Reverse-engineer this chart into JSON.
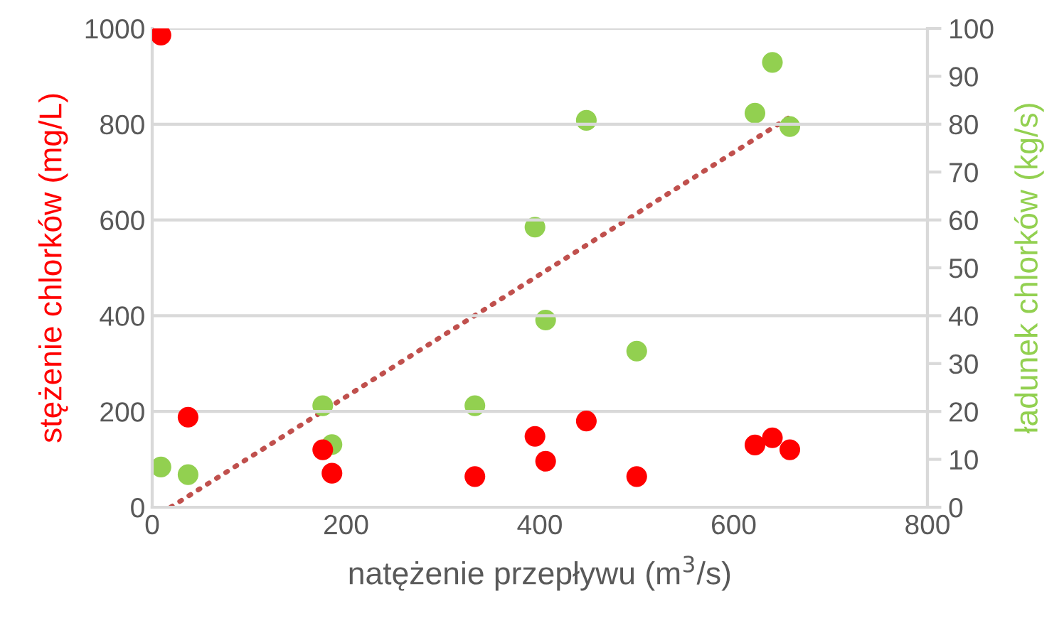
{
  "chart_data": {
    "type": "scatter",
    "xlabel": "natężenie przepływu (m$^{3}$/s)",
    "ylabel": "stężenie chlorków (mg/L)",
    "y2label": "ładunek chlorków (kg/s)",
    "xlim": [
      0,
      800
    ],
    "xticks": [
      0,
      200,
      400,
      600,
      800
    ],
    "ylim": [
      0,
      1000
    ],
    "yticks": [
      0,
      200,
      400,
      600,
      800,
      1000
    ],
    "y2lim": [
      0,
      100
    ],
    "y2ticks": [
      0,
      10,
      20,
      30,
      40,
      50,
      60,
      70,
      80,
      90,
      100
    ],
    "grid": "y",
    "legend": false,
    "marker": "circle",
    "series": [
      {
        "color": "#ff0000",
        "x": [
          9,
          37,
          176,
          185.5,
          333,
          395,
          406,
          448,
          500,
          622,
          640,
          658
        ],
        "values": [
          986,
          188,
          120,
          71,
          64,
          148,
          96,
          180,
          64,
          130,
          145,
          120
        ]
      },
      {
        "axis": "y2",
        "color": "#92d050",
        "x": [
          9,
          37,
          176,
          185.5,
          333,
          395,
          406,
          448,
          500,
          622,
          640,
          658
        ],
        "values": [
          8.4,
          6.8,
          21.2,
          13.1,
          21.2,
          58.5,
          39.1,
          80.8,
          32.6,
          82.3,
          92.9,
          79.5
        ]
      },
      {
        "type": "line",
        "axis": "y2",
        "color": "#c0504d",
        "line_style": "dotted",
        "marker": "none",
        "x": [
          19,
          658
        ],
        "values": [
          0,
          81.5
        ]
      }
    ]
  }
}
